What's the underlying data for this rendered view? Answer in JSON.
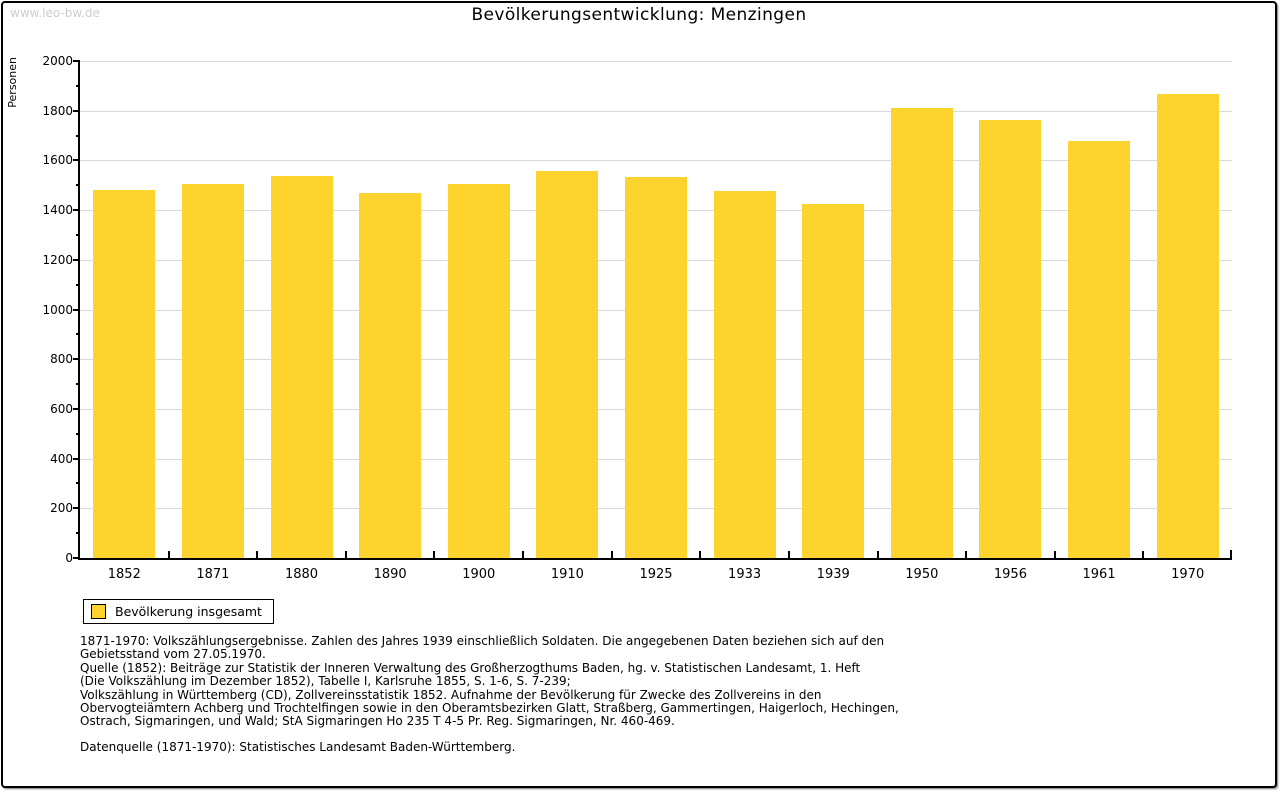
{
  "watermark": "www.leo-bw.de",
  "chart_data": {
    "type": "bar",
    "title": "Bevölkerungsentwicklung: Menzingen",
    "ylabel": "Personen",
    "xlabel": "",
    "ylim": [
      0,
      2000
    ],
    "ytick_step": 200,
    "minor_tick_step": 100,
    "grid": true,
    "legend_position": "bottom-left",
    "bar_color": "#fcd42d",
    "gridline_color": "#d9d9d9",
    "categories": [
      "1852",
      "1871",
      "1880",
      "1890",
      "1900",
      "1910",
      "1925",
      "1933",
      "1939",
      "1950",
      "1956",
      "1961",
      "1970"
    ],
    "values": [
      1480,
      1506,
      1538,
      1469,
      1506,
      1557,
      1534,
      1477,
      1426,
      1812,
      1763,
      1677,
      1866
    ],
    "legend": [
      {
        "label": "Bevölkerung insgesamt",
        "color": "#fcd42d"
      }
    ]
  },
  "footnotes": {
    "lines": [
      "1871-1970: Volkszählungsergebnisse. Zahlen des Jahres 1939 einschließlich Soldaten. Die angegebenen Daten beziehen sich auf den",
      "Gebietsstand vom 27.05.1970.",
      "Quelle (1852): Beiträge zur Statistik der Inneren Verwaltung des Großherzogthums Baden, hg. v. Statistischen Landesamt, 1. Heft",
      "(Die Volkszählung im Dezember 1852), Tabelle I, Karlsruhe 1855, S. 1-6, S. 7-239;",
      "Volkszählung in Württemberg (CD), Zollvereinsstatistik 1852. Aufnahme der Bevölkerung für Zwecke des Zollvereins in den",
      "Obervogteiämtern Achberg und Trochtelfingen sowie in den Oberamtsbezirken Glatt, Straßberg, Gammertingen, Haigerloch, Hechingen,",
      "Ostrach, Sigmaringen, und Wald; StA Sigmaringen Ho 235 T 4-5 Pr. Reg. Sigmaringen, Nr. 460-469."
    ],
    "datasource": "Datenquelle (1871-1970): Statistisches Landesamt Baden-Württemberg."
  }
}
